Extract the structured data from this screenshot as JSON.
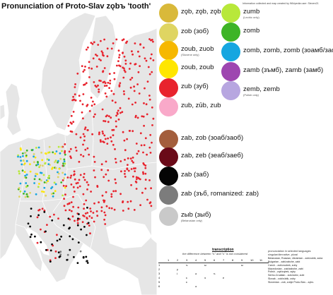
{
  "title": "Pronunciation of Proto-Slav zǫbъ 'tooth'",
  "credit": "Information collected and map created by Wikipedia user: Steven21",
  "legend": [
    {
      "id": "zob-nasal-1",
      "label": "zǫb, zǫb, zǫb",
      "note": "",
      "color": "#d9b93a"
    },
    {
      "id": "zob-1",
      "label": "zob (зоб)",
      "note": "",
      "color": "#dfd562"
    },
    {
      "id": "zoub",
      "label": "zoub, zuob",
      "note": "(Slovene only)",
      "color": "#f6b800"
    },
    {
      "id": "zoub-2",
      "label": "zoub, zoub",
      "note": "",
      "color": "#ffe600"
    },
    {
      "id": "zub",
      "label": "zub (зуб)",
      "note": "",
      "color": "#e8232d"
    },
    {
      "id": "zub-2",
      "label": "zub, zūb, zub",
      "note": "",
      "color": "#f9a9c9"
    },
    {
      "id": "zumb-1",
      "label": "zumb",
      "note": "(Lechic only)",
      "color": "#b8e83a"
    },
    {
      "id": "zomb",
      "label": "zomb",
      "note": "",
      "color": "#3eb426"
    },
    {
      "id": "zomb-2",
      "label": "zomb, zomb, zomb (зоамб/заомб)",
      "note": "",
      "color": "#16a6e0"
    },
    {
      "id": "zamb",
      "label": "zamb (зъмб), zamb (замб)",
      "note": "",
      "color": "#9e46b0"
    },
    {
      "id": "zemb",
      "label": "zemb, zemb",
      "note": "(Polish only)",
      "color": "#b7a6e0"
    },
    {
      "id": "zab-1",
      "label": "zab, zob (зоаб/заоб)",
      "note": "",
      "color": "#a35e3c"
    },
    {
      "id": "zab-2",
      "label": "zab, zeb (зеаб/заеб)",
      "note": "",
      "color": "#6a0a18"
    },
    {
      "id": "zab-3",
      "label": "zab (заб)",
      "note": "",
      "color": "#050505"
    },
    {
      "id": "zab-4",
      "label": "zab (зъб, romanized: zab)",
      "note": "",
      "color": "#7c7c7c"
    },
    {
      "id": "zyb",
      "label": "zыb (зыб)",
      "note": "(Belarusian only)",
      "color": "#c9c9c9"
    }
  ],
  "transcription": {
    "title": "transcription",
    "subtitle": "the difference between \"ъ\" and \"ь\" is not considered",
    "headers": [
      "1",
      "2",
      "3",
      "4",
      "5",
      "6",
      "7",
      "8",
      "9",
      "10",
      "11"
    ],
    "rows": [
      [
        "1",
        "",
        "",
        "ъ",
        "",
        "ы",
        "",
        "",
        "",
        "ы",
        "",
        ""
      ],
      [
        "2",
        "",
        "у",
        "",
        "",
        "",
        "",
        "",
        "",
        "",
        "",
        ""
      ],
      [
        "3",
        "",
        "ɨ",
        "",
        "ә",
        "",
        "ъ",
        "",
        "",
        "",
        "",
        ""
      ],
      [
        "4",
        "",
        "",
        "ɛ",
        "",
        "э",
        "",
        "е",
        "",
        "",
        "",
        ""
      ],
      [
        "5",
        "",
        "",
        "ɛ",
        "",
        "",
        "",
        "",
        "",
        "",
        "",
        ""
      ],
      [
        "6",
        "",
        "",
        "",
        "ә",
        "",
        "",
        "",
        "",
        "",
        "",
        ""
      ]
    ]
  },
  "languages": {
    "heading": "singular/dimnative, plural",
    "note": "pronunciation in selected languages",
    "items": [
      "Belarusian, Russian, Ukrainian - zub/zubik, zuba",
      "Bulgarian - zab/zabche, zabi",
      "Czech - zub/zoubek, zuby",
      "Macedonian - zab/zabche, zabi",
      "Polish - ząb/ząbek, zęby",
      "Serbo-Croatian - zub/zubić, zubi",
      "Slovak - zub/zúbik, zuby",
      "Slovenian - zob, zobje     Proto-Slav - zǫbъ"
    ]
  },
  "map": {
    "sea_color": "#ffffff",
    "land_color": "#e6e6e6",
    "border_color": "#ffffff",
    "dialect_dot_colors": [
      "#e8232d",
      "#16a6e0",
      "#ffe600",
      "#dfd562",
      "#050505",
      "#7c7c7c",
      "#3eb426",
      "#b8e83a"
    ]
  }
}
